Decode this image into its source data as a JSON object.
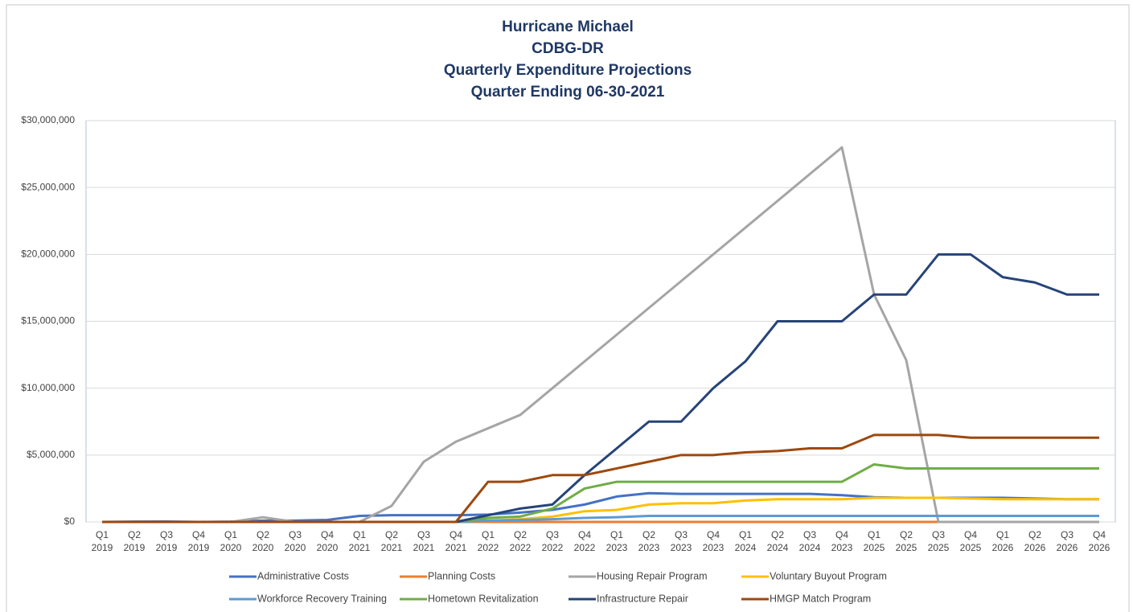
{
  "chart_data": {
    "type": "line",
    "title": [
      "Hurricane Michael",
      "CDBG-DR",
      "Quarterly Expenditure Projections",
      "Quarter Ending 06-30-2021"
    ],
    "categories": [
      "Q1 2019",
      "Q2 2019",
      "Q3 2019",
      "Q4 2019",
      "Q1 2020",
      "Q2 2020",
      "Q3 2020",
      "Q4 2020",
      "Q1 2021",
      "Q2 2021",
      "Q3 2021",
      "Q4 2021",
      "Q1 2022",
      "Q2 2022",
      "Q3 2022",
      "Q4 2022",
      "Q1 2023",
      "Q2 2023",
      "Q3 2023",
      "Q4 2023",
      "Q1 2024",
      "Q2 2024",
      "Q3 2024",
      "Q4 2023",
      "Q1 2025",
      "Q2 2025",
      "Q3 2025",
      "Q4 2025",
      "Q1 2026",
      "Q2 2026",
      "Q3 2026",
      "Q4 2026"
    ],
    "ylim": [
      0,
      30000000
    ],
    "yticks": [
      {
        "value": 0,
        "label": "$0"
      },
      {
        "value": 5000000,
        "label": "$5,000,000"
      },
      {
        "value": 10000000,
        "label": "$10,000,000"
      },
      {
        "value": 15000000,
        "label": "$15,000,000"
      },
      {
        "value": 20000000,
        "label": "$20,000,000"
      },
      {
        "value": 25000000,
        "label": "$25,000,000"
      },
      {
        "value": 30000000,
        "label": "$30,000,000"
      }
    ],
    "grid": true,
    "legend": "bottom",
    "series": [
      {
        "name": "Administrative Costs",
        "color": "#4472c4",
        "values": [
          0,
          20000,
          30000,
          0,
          20000,
          100000,
          100000,
          150000,
          450000,
          500000,
          500000,
          500000,
          550000,
          700000,
          900000,
          1300000,
          1900000,
          2150000,
          2100000,
          2100000,
          2100000,
          2100000,
          2100000,
          2000000,
          1850000,
          1800000,
          1800000,
          1800000,
          1800000,
          1750000,
          1700000,
          1700000
        ]
      },
      {
        "name": "Planning Costs",
        "color": "#ed7d31",
        "values": [
          0,
          0,
          0,
          0,
          0,
          0,
          0,
          0,
          0,
          0,
          0,
          0,
          0,
          0,
          0,
          0,
          0,
          0,
          0,
          0,
          0,
          0,
          0,
          0,
          0,
          0,
          0,
          0,
          0,
          0,
          0,
          0
        ]
      },
      {
        "name": "Housing Repair Program",
        "color": "#a5a5a5",
        "values": [
          0,
          0,
          0,
          0,
          0,
          350000,
          0,
          0,
          0,
          1200000,
          4500000,
          6000000,
          7000000,
          8000000,
          10000000,
          12000000,
          14000000,
          16000000,
          18000000,
          20000000,
          22000000,
          24000000,
          26000000,
          28000000,
          17000000,
          12100000,
          0,
          0,
          0,
          0,
          0,
          0
        ]
      },
      {
        "name": "Voluntary Buyout Program",
        "color": "#ffc000",
        "values": [
          0,
          0,
          0,
          0,
          0,
          0,
          0,
          0,
          0,
          0,
          0,
          0,
          100000,
          200000,
          400000,
          800000,
          900000,
          1300000,
          1400000,
          1400000,
          1600000,
          1700000,
          1700000,
          1700000,
          1800000,
          1800000,
          1800000,
          1750000,
          1700000,
          1700000,
          1700000,
          1700000
        ]
      },
      {
        "name": "Workforce Recovery Training",
        "color": "#5b9bd5",
        "values": [
          0,
          0,
          0,
          0,
          0,
          0,
          0,
          0,
          0,
          0,
          0,
          0,
          100000,
          150000,
          200000,
          300000,
          350000,
          450000,
          450000,
          450000,
          450000,
          450000,
          450000,
          450000,
          450000,
          450000,
          450000,
          450000,
          450000,
          450000,
          450000,
          450000
        ]
      },
      {
        "name": "Hometown Revitalization",
        "color": "#70ad47",
        "values": [
          0,
          0,
          0,
          0,
          0,
          0,
          0,
          0,
          0,
          0,
          0,
          0,
          300000,
          400000,
          1000000,
          2500000,
          3000000,
          3000000,
          3000000,
          3000000,
          3000000,
          3000000,
          3000000,
          3000000,
          4300000,
          4000000,
          4000000,
          4000000,
          4000000,
          4000000,
          4000000,
          4000000
        ]
      },
      {
        "name": "Infrastructure Repair",
        "color": "#264478",
        "values": [
          0,
          0,
          0,
          0,
          0,
          0,
          0,
          0,
          0,
          0,
          0,
          0,
          500000,
          1000000,
          1300000,
          3500000,
          5500000,
          7500000,
          7500000,
          10000000,
          12000000,
          15000000,
          15000000,
          15000000,
          17000000,
          17000000,
          20000000,
          20000000,
          18300000,
          17900000,
          17000000,
          17000000
        ]
      },
      {
        "name": "HMGP Match Program",
        "color": "#9e480e",
        "values": [
          0,
          0,
          0,
          0,
          0,
          0,
          0,
          0,
          0,
          0,
          0,
          0,
          3000000,
          3000000,
          3500000,
          3500000,
          4000000,
          4500000,
          5000000,
          5000000,
          5200000,
          5300000,
          5500000,
          5500000,
          6500000,
          6500000,
          6500000,
          6300000,
          6300000,
          6300000,
          6300000,
          6300000
        ]
      }
    ]
  }
}
